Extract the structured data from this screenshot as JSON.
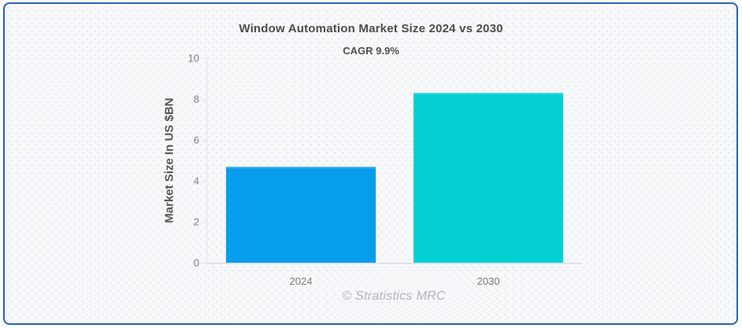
{
  "card": {
    "border_color": "#2a63b8",
    "background_color": "#f7f8fa",
    "dot_pattern_color": "#e4e7eb"
  },
  "chart_data": {
    "type": "bar",
    "title": "Window Automation Market Size 2024 vs 2030",
    "subtitle": "CAGR 9.9%",
    "categories": [
      "2024",
      "2030"
    ],
    "values": [
      4.7,
      8.3
    ],
    "bar_colors": [
      "#069ded",
      "#04d0d4"
    ],
    "xlabel": "",
    "ylabel": "Market Size In US $BN",
    "ylim": [
      0,
      10
    ],
    "yticks": [
      0,
      2,
      4,
      6,
      8,
      10
    ],
    "grid": false,
    "legend_position": "none",
    "axis_color": "#e0e3e7",
    "tick_label_color": "#7f7f7f",
    "title_color": "#4d4d4d"
  },
  "footer": {
    "credit": "© Stratistics MRC"
  }
}
